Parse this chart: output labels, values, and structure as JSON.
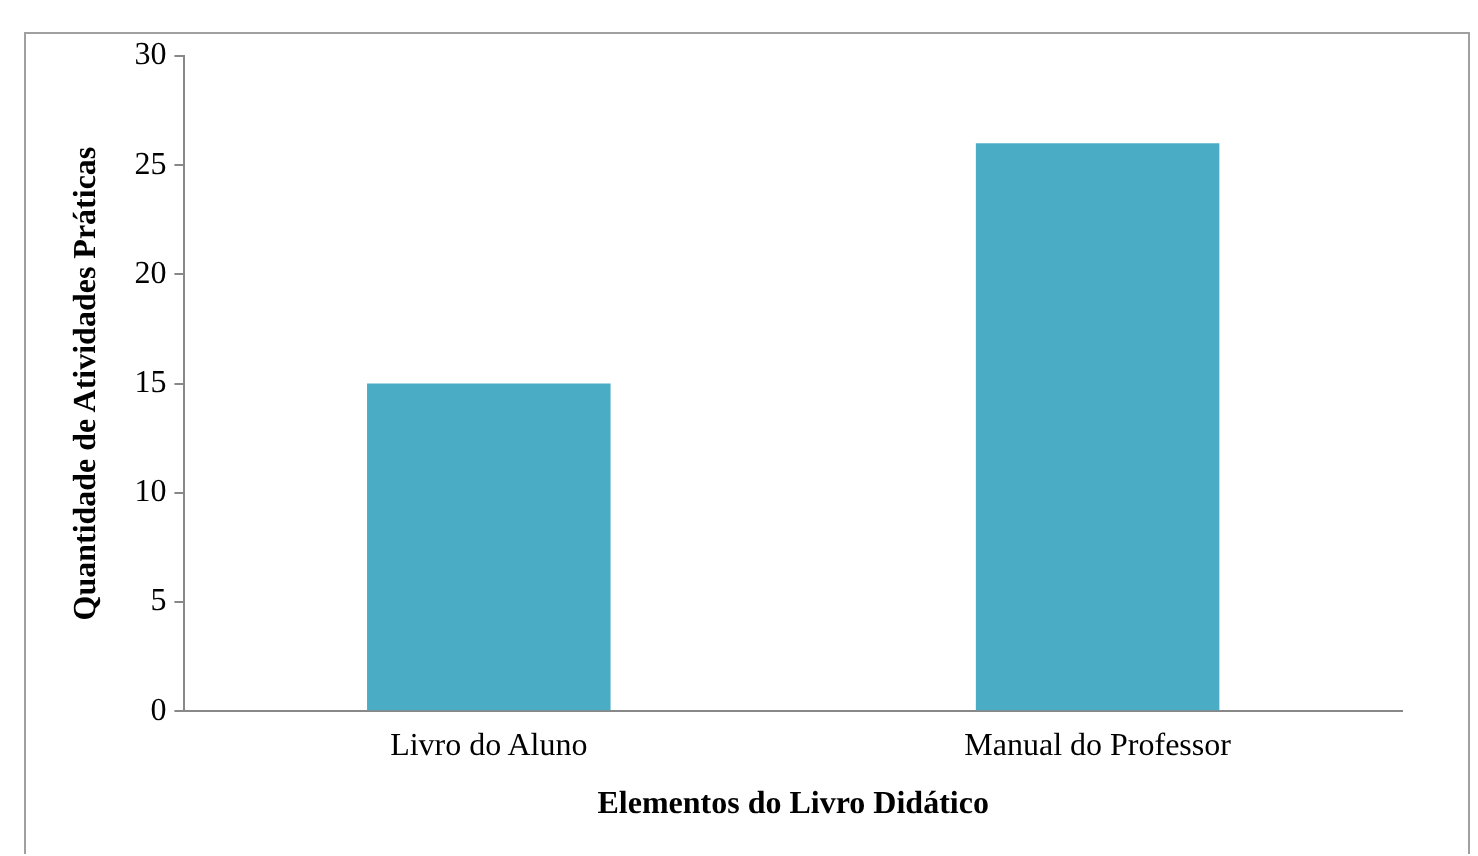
{
  "chart_data": {
    "type": "bar",
    "xlabel": "Elementos do Livro Didático",
    "ylabel": "Quantidade de Atividades Práticas",
    "categories": [
      "Livro do Aluno",
      "Manual do Professor"
    ],
    "values": [
      15,
      26
    ],
    "color": "#4bacc6",
    "ylim": [
      0,
      30
    ],
    "yticks": [
      0,
      5,
      10,
      15,
      20,
      25,
      30
    ],
    "grid": false
  }
}
